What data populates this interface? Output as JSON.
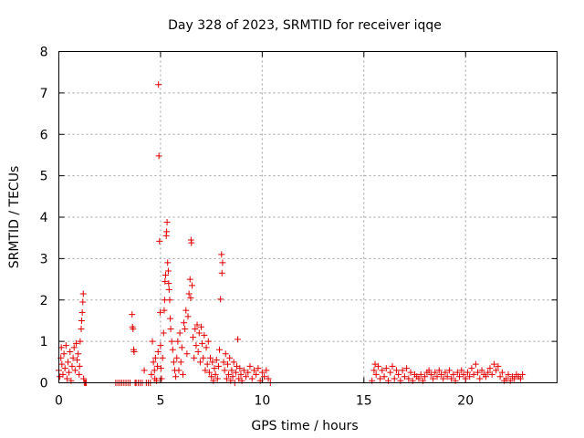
{
  "chart_data": {
    "type": "scatter",
    "title": "Day 328 of 2023, SRMTID for receiver iqqe",
    "xlabel": "GPS time / hours",
    "ylabel": "SRMTID / TECUs",
    "xlim": [
      0,
      24.5
    ],
    "ylim": [
      0,
      8
    ],
    "x_ticks": [
      0,
      5,
      10,
      15,
      20
    ],
    "y_ticks": [
      0,
      1,
      2,
      3,
      4,
      5,
      6,
      7,
      8
    ],
    "x_tick_labels": [
      "0",
      "5",
      "10",
      "15",
      "20"
    ],
    "y_tick_labels": [
      "0",
      "1",
      "2",
      "3",
      "4",
      "5",
      "6",
      "7",
      "8"
    ],
    "grid": true,
    "marker": "plus",
    "color": "#e00000",
    "series": [
      {
        "name": "SRMTID",
        "points": [
          [
            0.0,
            0.3
          ],
          [
            0.05,
            0.15
          ],
          [
            0.1,
            0.6
          ],
          [
            0.12,
            0.85
          ],
          [
            0.15,
            0.45
          ],
          [
            0.2,
            0.2
          ],
          [
            0.25,
            0.7
          ],
          [
            0.3,
            0.35
          ],
          [
            0.35,
            0.9
          ],
          [
            0.4,
            0.1
          ],
          [
            0.45,
            0.5
          ],
          [
            0.5,
            0.25
          ],
          [
            0.55,
            0.75
          ],
          [
            0.6,
            0.05
          ],
          [
            0.65,
            0.4
          ],
          [
            0.7,
            0.6
          ],
          [
            0.75,
            0.85
          ],
          [
            0.8,
            0.3
          ],
          [
            0.85,
            0.95
          ],
          [
            0.9,
            0.55
          ],
          [
            0.95,
            0.7
          ],
          [
            1.0,
            0.2
          ],
          [
            1.02,
            0.4
          ],
          [
            1.05,
            1.0
          ],
          [
            1.1,
            1.3
          ],
          [
            1.12,
            1.5
          ],
          [
            1.15,
            1.7
          ],
          [
            1.18,
            1.95
          ],
          [
            1.2,
            2.15
          ],
          [
            1.22,
            0.1
          ],
          [
            1.25,
            0.0
          ],
          [
            1.3,
            0.0
          ],
          [
            1.35,
            0.0
          ],
          [
            2.8,
            0.0
          ],
          [
            2.9,
            0.0
          ],
          [
            3.0,
            0.0
          ],
          [
            3.1,
            0.0
          ],
          [
            3.2,
            0.0
          ],
          [
            3.3,
            0.0
          ],
          [
            3.4,
            0.0
          ],
          [
            3.5,
            0.0
          ],
          [
            3.6,
            1.65
          ],
          [
            3.62,
            1.35
          ],
          [
            3.65,
            1.3
          ],
          [
            3.68,
            0.8
          ],
          [
            3.7,
            0.75
          ],
          [
            3.75,
            0.0
          ],
          [
            3.8,
            0.0
          ],
          [
            3.9,
            0.0
          ],
          [
            4.0,
            0.0
          ],
          [
            4.1,
            0.0
          ],
          [
            4.2,
            0.3
          ],
          [
            4.3,
            0.0
          ],
          [
            4.4,
            0.0
          ],
          [
            4.5,
            0.0
          ],
          [
            4.55,
            0.2
          ],
          [
            4.6,
            1.0
          ],
          [
            4.65,
            0.5
          ],
          [
            4.7,
            0.3
          ],
          [
            4.72,
            0.1
          ],
          [
            4.75,
            0.6
          ],
          [
            4.8,
            0.05
          ],
          [
            4.85,
            0.4
          ],
          [
            4.88,
            0.75
          ],
          [
            4.9,
            7.2
          ],
          [
            4.92,
            5.48
          ],
          [
            4.95,
            3.42
          ],
          [
            4.98,
            1.7
          ],
          [
            5.0,
            0.9
          ],
          [
            5.02,
            0.35
          ],
          [
            5.05,
            0.1
          ],
          [
            5.1,
            0.6
          ],
          [
            5.15,
            1.2
          ],
          [
            5.18,
            1.75
          ],
          [
            5.2,
            2.0
          ],
          [
            5.22,
            2.45
          ],
          [
            5.25,
            2.6
          ],
          [
            5.28,
            3.55
          ],
          [
            5.3,
            3.65
          ],
          [
            5.32,
            3.88
          ],
          [
            5.35,
            2.9
          ],
          [
            5.38,
            2.7
          ],
          [
            5.4,
            2.4
          ],
          [
            5.42,
            2.25
          ],
          [
            5.45,
            2.0
          ],
          [
            5.48,
            1.55
          ],
          [
            5.5,
            1.3
          ],
          [
            5.55,
            1.0
          ],
          [
            5.6,
            0.8
          ],
          [
            5.65,
            0.5
          ],
          [
            5.7,
            0.3
          ],
          [
            5.75,
            0.15
          ],
          [
            5.8,
            0.6
          ],
          [
            5.85,
            1.0
          ],
          [
            5.9,
            0.3
          ],
          [
            5.95,
            1.2
          ],
          [
            6.0,
            0.5
          ],
          [
            6.05,
            0.85
          ],
          [
            6.1,
            0.2
          ],
          [
            6.15,
            1.45
          ],
          [
            6.2,
            1.3
          ],
          [
            6.25,
            1.75
          ],
          [
            6.3,
            0.7
          ],
          [
            6.35,
            1.6
          ],
          [
            6.4,
            2.15
          ],
          [
            6.45,
            2.5
          ],
          [
            6.48,
            2.05
          ],
          [
            6.5,
            3.45
          ],
          [
            6.52,
            3.38
          ],
          [
            6.55,
            2.35
          ],
          [
            6.6,
            1.1
          ],
          [
            6.65,
            0.6
          ],
          [
            6.7,
            1.3
          ],
          [
            6.75,
            0.9
          ],
          [
            6.8,
            1.4
          ],
          [
            6.85,
            0.75
          ],
          [
            6.9,
            1.2
          ],
          [
            6.95,
            0.5
          ],
          [
            7.0,
            1.35
          ],
          [
            7.05,
            0.95
          ],
          [
            7.1,
            0.6
          ],
          [
            7.15,
            1.15
          ],
          [
            7.2,
            0.3
          ],
          [
            7.25,
            0.85
          ],
          [
            7.3,
            0.45
          ],
          [
            7.35,
            1.0
          ],
          [
            7.4,
            0.25
          ],
          [
            7.45,
            0.6
          ],
          [
            7.5,
            0.15
          ],
          [
            7.55,
            0.5
          ],
          [
            7.6,
            0.05
          ],
          [
            7.65,
            0.35
          ],
          [
            7.7,
            0.2
          ],
          [
            7.75,
            0.55
          ],
          [
            7.8,
            0.1
          ],
          [
            7.85,
            0.4
          ],
          [
            7.9,
            0.8
          ],
          [
            7.95,
            2.02
          ],
          [
            8.0,
            3.1
          ],
          [
            8.02,
            2.65
          ],
          [
            8.05,
            2.9
          ],
          [
            8.1,
            0.5
          ],
          [
            8.15,
            0.3
          ],
          [
            8.2,
            0.7
          ],
          [
            8.25,
            0.1
          ],
          [
            8.3,
            0.45
          ],
          [
            8.35,
            0.2
          ],
          [
            8.4,
            0.6
          ],
          [
            8.45,
            0.05
          ],
          [
            8.5,
            0.3
          ],
          [
            8.55,
            0.15
          ],
          [
            8.6,
            0.5
          ],
          [
            8.65,
            0.0
          ],
          [
            8.7,
            0.25
          ],
          [
            8.75,
            0.4
          ],
          [
            8.8,
            1.05
          ],
          [
            8.85,
            0.1
          ],
          [
            8.9,
            0.35
          ],
          [
            8.95,
            0.2
          ],
          [
            9.0,
            0.05
          ],
          [
            9.1,
            0.3
          ],
          [
            9.2,
            0.15
          ],
          [
            9.3,
            0.25
          ],
          [
            9.4,
            0.4
          ],
          [
            9.5,
            0.1
          ],
          [
            9.6,
            0.3
          ],
          [
            9.7,
            0.2
          ],
          [
            9.8,
            0.35
          ],
          [
            9.9,
            0.05
          ],
          [
            10.0,
            0.25
          ],
          [
            10.1,
            0.15
          ],
          [
            10.2,
            0.3
          ],
          [
            10.3,
            0.1
          ],
          [
            10.4,
            0.0
          ],
          [
            15.4,
            0.05
          ],
          [
            15.5,
            0.3
          ],
          [
            15.55,
            0.45
          ],
          [
            15.6,
            0.2
          ],
          [
            15.7,
            0.4
          ],
          [
            15.8,
            0.1
          ],
          [
            15.9,
            0.3
          ],
          [
            16.0,
            0.15
          ],
          [
            16.1,
            0.35
          ],
          [
            16.2,
            0.05
          ],
          [
            16.3,
            0.25
          ],
          [
            16.4,
            0.4
          ],
          [
            16.5,
            0.1
          ],
          [
            16.6,
            0.3
          ],
          [
            16.7,
            0.2
          ],
          [
            16.8,
            0.05
          ],
          [
            16.9,
            0.3
          ],
          [
            17.0,
            0.15
          ],
          [
            17.1,
            0.35
          ],
          [
            17.2,
            0.1
          ],
          [
            17.3,
            0.25
          ],
          [
            17.4,
            0.05
          ],
          [
            17.5,
            0.2
          ],
          [
            17.6,
            0.15
          ],
          [
            17.7,
            0.1
          ],
          [
            17.8,
            0.2
          ],
          [
            17.9,
            0.05
          ],
          [
            18.0,
            0.15
          ],
          [
            18.1,
            0.25
          ],
          [
            18.2,
            0.3
          ],
          [
            18.3,
            0.2
          ],
          [
            18.4,
            0.1
          ],
          [
            18.5,
            0.25
          ],
          [
            18.6,
            0.15
          ],
          [
            18.7,
            0.3
          ],
          [
            18.8,
            0.2
          ],
          [
            18.9,
            0.1
          ],
          [
            19.0,
            0.25
          ],
          [
            19.1,
            0.15
          ],
          [
            19.2,
            0.3
          ],
          [
            19.3,
            0.1
          ],
          [
            19.4,
            0.2
          ],
          [
            19.5,
            0.05
          ],
          [
            19.6,
            0.25
          ],
          [
            19.7,
            0.15
          ],
          [
            19.8,
            0.3
          ],
          [
            19.9,
            0.2
          ],
          [
            20.0,
            0.1
          ],
          [
            20.1,
            0.25
          ],
          [
            20.2,
            0.15
          ],
          [
            20.3,
            0.35
          ],
          [
            20.4,
            0.2
          ],
          [
            20.5,
            0.45
          ],
          [
            20.6,
            0.25
          ],
          [
            20.7,
            0.1
          ],
          [
            20.8,
            0.3
          ],
          [
            20.9,
            0.2
          ],
          [
            21.0,
            0.15
          ],
          [
            21.1,
            0.25
          ],
          [
            21.2,
            0.35
          ],
          [
            21.3,
            0.2
          ],
          [
            21.4,
            0.45
          ],
          [
            21.5,
            0.3
          ],
          [
            21.6,
            0.4
          ],
          [
            21.7,
            0.15
          ],
          [
            21.8,
            0.25
          ],
          [
            21.9,
            0.05
          ],
          [
            22.0,
            0.1
          ],
          [
            22.1,
            0.2
          ],
          [
            22.2,
            0.05
          ],
          [
            22.3,
            0.15
          ],
          [
            22.4,
            0.1
          ],
          [
            22.5,
            0.2
          ],
          [
            22.6,
            0.15
          ],
          [
            22.7,
            0.1
          ],
          [
            22.8,
            0.2
          ]
        ]
      }
    ]
  }
}
